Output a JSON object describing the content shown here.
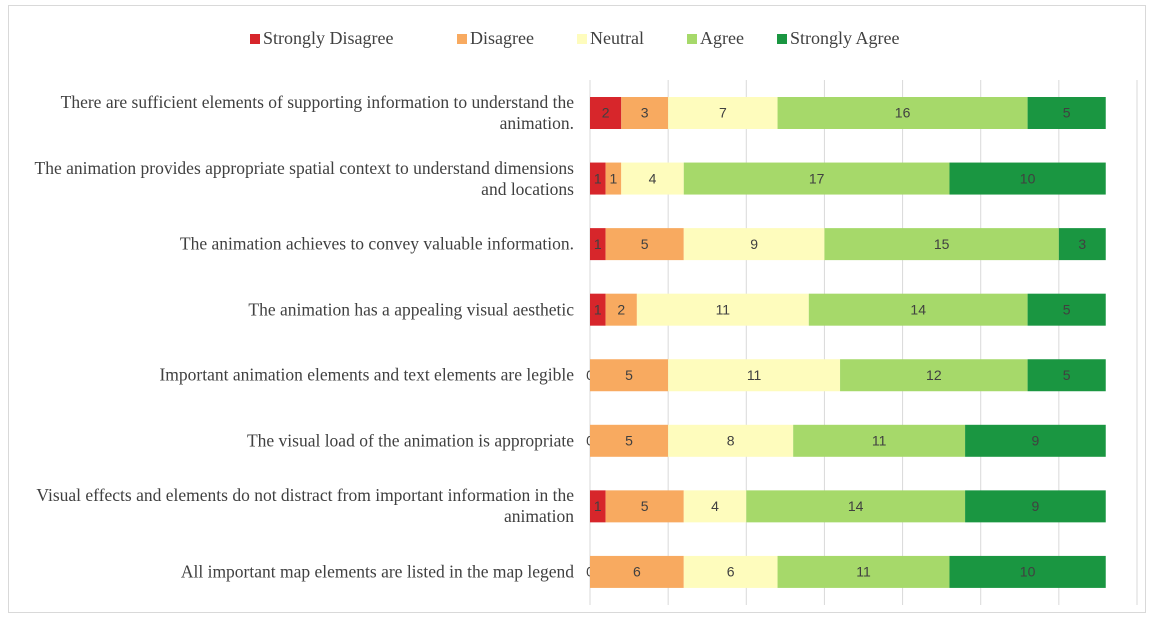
{
  "chart_data": {
    "type": "stacked_bar_horizontal",
    "categories": [
      "There are sufficient elements of supporting information to understand the animation.",
      "The animation provides appropriate spatial context to understand dimensions and locations",
      "The animation achieves to convey valuable information.",
      "The animation has a appealing visual aesthetic",
      "Important animation elements and text elements are legible",
      "The visual load of the animation is appropriate",
      "Visual effects and elements do not distract from important information in the animation",
      "All important map elements are listed in the map legend"
    ],
    "series": [
      {
        "name": "Strongly Disagree",
        "color": "#d7262b",
        "values": [
          2,
          1,
          1,
          1,
          0,
          0,
          1,
          0
        ]
      },
      {
        "name": "Disagree",
        "color": "#f8aa60",
        "values": [
          3,
          1,
          5,
          2,
          5,
          5,
          5,
          6
        ]
      },
      {
        "name": "Neutral",
        "color": "#fefcbd",
        "values": [
          7,
          4,
          9,
          11,
          11,
          8,
          4,
          6
        ]
      },
      {
        "name": "Agree",
        "color": "#a6d96a",
        "values": [
          16,
          17,
          15,
          14,
          12,
          11,
          14,
          11
        ]
      },
      {
        "name": "Strongly Agree",
        "color": "#1a9641",
        "values": [
          5,
          10,
          3,
          5,
          5,
          9,
          9,
          10
        ]
      }
    ],
    "xlim": [
      0,
      35
    ],
    "xticks": [
      0,
      5,
      10,
      15,
      20,
      25,
      30,
      35
    ],
    "grid": true,
    "legend": "top"
  }
}
